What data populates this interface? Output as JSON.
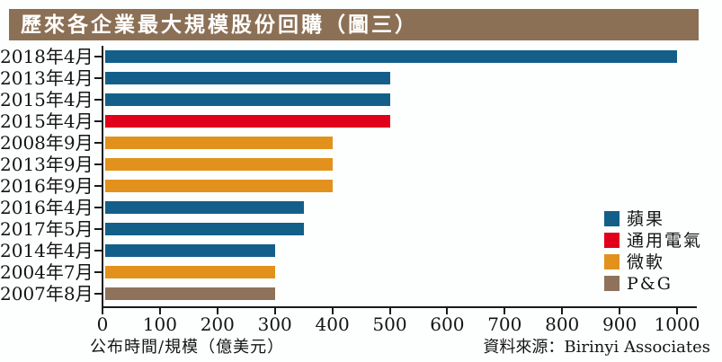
{
  "title": "歷來各企業最大規模股份回購（圖三）",
  "chart_data": {
    "type": "bar",
    "orientation": "horizontal",
    "title": "歷來各企業最大規模股份回購（圖三）",
    "xlabel": "公布時間/規模（億美元）",
    "source": "資料來源：Birinyi Associates",
    "xlim": [
      0,
      1000
    ],
    "xticks": [
      0,
      100,
      200,
      300,
      400,
      500,
      600,
      700,
      800,
      900,
      1000
    ],
    "grid": false,
    "legend_position": "right",
    "categories": [
      "2018年4月",
      "2013年4月",
      "2015年4月",
      "2015年4月",
      "2008年9月",
      "2013年9月",
      "2016年9月",
      "2016年4月",
      "2017年5月",
      "2014年4月",
      "2004年7月",
      "2007年8月"
    ],
    "values": [
      1000,
      500,
      500,
      500,
      400,
      400,
      400,
      350,
      350,
      300,
      300,
      300
    ],
    "bar_series": [
      "蘋果",
      "蘋果",
      "蘋果",
      "通用電氣",
      "微軟",
      "微軟",
      "微軟",
      "蘋果",
      "蘋果",
      "蘋果",
      "微軟",
      "P&G"
    ],
    "legend": [
      {
        "label": "蘋果",
        "color": "#135f89"
      },
      {
        "label": "通用電氣",
        "color": "#e1001c"
      },
      {
        "label": "微軟",
        "color": "#e2921c"
      },
      {
        "label": "P&G",
        "color": "#8f725c"
      }
    ]
  },
  "colors": {
    "title_bar_bg": "#8c7055",
    "title_text": "#ffffff",
    "axis": "#1a1a1a",
    "background": "#fdfffe"
  }
}
